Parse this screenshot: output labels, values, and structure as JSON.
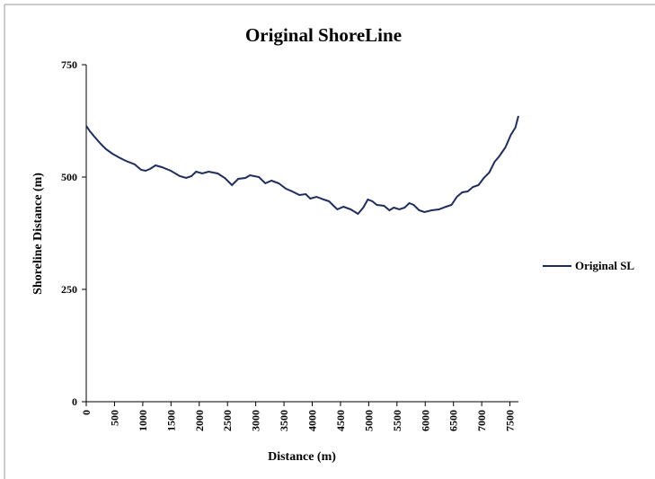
{
  "chart_data": {
    "type": "line",
    "title": "Original ShoreLine",
    "x_label": "Distance (m)",
    "y_label": "Shoreline Distance (m)",
    "x": [
      0,
      64,
      143,
      255,
      350,
      462,
      573,
      700,
      860,
      970,
      1050,
      1130,
      1226,
      1338,
      1497,
      1656,
      1768,
      1863,
      1943,
      2054,
      2166,
      2325,
      2452,
      2580,
      2691,
      2818,
      2898,
      3057,
      3169,
      3280,
      3408,
      3535,
      3646,
      3774,
      3885,
      3965,
      4076,
      4204,
      4299,
      4363,
      4443,
      4554,
      4682,
      4809,
      4904,
      4984,
      5064,
      5143,
      5271,
      5366,
      5446,
      5541,
      5637,
      5717,
      5796,
      5892,
      5987,
      6115,
      6242,
      6369,
      6465,
      6560,
      6656,
      6751,
      6847,
      6942,
      7038,
      7133,
      7229,
      7309,
      7420,
      7516,
      7596,
      7650
    ],
    "series": [
      {
        "name": "Original SL",
        "color": "#1f2d5c",
        "values": [
          614,
          602,
          590,
          574,
          562,
          552,
          544,
          536,
          528,
          516,
          514,
          518,
          526,
          522,
          514,
          502,
          498,
          502,
          512,
          508,
          512,
          508,
          498,
          482,
          496,
          498,
          504,
          500,
          486,
          492,
          486,
          474,
          468,
          460,
          462,
          452,
          456,
          450,
          446,
          438,
          428,
          434,
          428,
          418,
          432,
          450,
          446,
          438,
          436,
          426,
          432,
          428,
          432,
          442,
          438,
          426,
          422,
          426,
          428,
          434,
          438,
          456,
          466,
          468,
          478,
          482,
          498,
          510,
          534,
          546,
          566,
          594,
          610,
          636
        ]
      }
    ],
    "xlim": [
      0,
      7650
    ],
    "xticks": [
      0,
      500,
      1000,
      1500,
      2000,
      2500,
      3000,
      3500,
      4000,
      4500,
      5000,
      5500,
      6000,
      6500,
      7000,
      7500
    ],
    "ylim": [
      0,
      750
    ],
    "yticks": [
      0,
      250,
      500,
      750
    ],
    "legend": "right"
  }
}
